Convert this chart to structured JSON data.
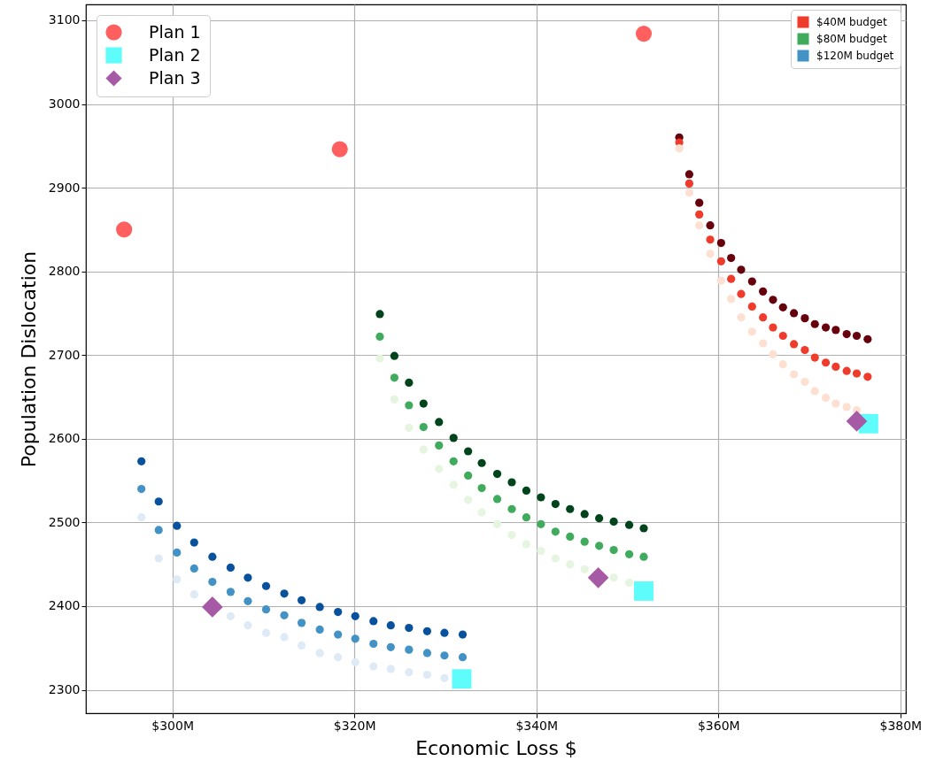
{
  "chart_data": {
    "type": "scatter",
    "xlabel": "Economic Loss $",
    "ylabel": "Population Dislocation",
    "xlim": [
      290.5,
      380.6
    ],
    "ylim": [
      2272,
      3119
    ],
    "xticks": [
      {
        "value": 300,
        "label": "$300M"
      },
      {
        "value": 320,
        "label": "$320M"
      },
      {
        "value": 340,
        "label": "$340M"
      },
      {
        "value": 360,
        "label": "$360M"
      },
      {
        "value": 380,
        "label": "$380M"
      }
    ],
    "yticks": [
      2300,
      2400,
      2500,
      2600,
      2700,
      2800,
      2900,
      3000,
      3100
    ],
    "grid": true,
    "legend": "top",
    "marker": "circle",
    "series": [
      {
        "name": "$40M budget",
        "color": "#ef3b2c",
        "x": [
          355.7,
          355.7,
          355.7,
          356.8,
          356.8,
          356.8,
          357.9,
          357.9,
          357.9,
          359.1,
          359.1,
          359.1,
          360.3,
          360.3,
          360.3,
          361.4,
          361.4,
          361.4,
          362.5,
          362.5,
          362.5,
          363.7,
          363.7,
          363.7,
          364.9,
          364.9,
          364.9,
          366.0,
          366.0,
          366.0,
          367.1,
          367.1,
          367.1,
          368.3,
          368.3,
          368.3,
          369.5,
          369.5,
          369.5,
          370.6,
          370.6,
          370.6,
          371.8,
          371.8,
          371.8,
          372.9,
          372.9,
          372.9,
          374.1,
          374.1,
          374.1,
          375.2,
          375.2,
          375.2,
          376.4,
          376.4
        ],
        "values": [
          2960,
          2954,
          2947,
          2916,
          2905,
          2894,
          2882,
          2868,
          2855,
          2855,
          2838,
          2821,
          2834,
          2812,
          2789,
          2816,
          2791,
          2767,
          2802,
          2773,
          2745,
          2788,
          2758,
          2728,
          2776,
          2745,
          2714,
          2766,
          2733,
          2701,
          2757,
          2723,
          2689,
          2750,
          2713,
          2677,
          2744,
          2706,
          2668,
          2737,
          2697,
          2657,
          2733,
          2691,
          2649,
          2730,
          2686,
          2642,
          2725,
          2681,
          2638,
          2723,
          2678,
          2634,
          2719,
          2674
        ],
        "colors": [
          "#67000d",
          "#ef3b2c",
          "#fee0d2",
          "#67000d",
          "#ef3b2c",
          "#fee0d2",
          "#67000d",
          "#ef3b2c",
          "#fee0d2",
          "#67000d",
          "#ef3b2c",
          "#fee0d2",
          "#67000d",
          "#ef3b2c",
          "#fee0d2",
          "#67000d",
          "#ef3b2c",
          "#fee0d2",
          "#67000d",
          "#ef3b2c",
          "#fee0d2",
          "#67000d",
          "#ef3b2c",
          "#fee0d2",
          "#67000d",
          "#ef3b2c",
          "#fee0d2",
          "#67000d",
          "#ef3b2c",
          "#fee0d2",
          "#67000d",
          "#ef3b2c",
          "#fee0d2",
          "#67000d",
          "#ef3b2c",
          "#fee0d2",
          "#67000d",
          "#ef3b2c",
          "#fee0d2",
          "#67000d",
          "#ef3b2c",
          "#fee0d2",
          "#67000d",
          "#ef3b2c",
          "#fee0d2",
          "#67000d",
          "#ef3b2c",
          "#fee0d2",
          "#67000d",
          "#ef3b2c",
          "#fee0d2",
          "#67000d",
          "#ef3b2c",
          "#fee0d2",
          "#67000d",
          "#ef3b2c"
        ]
      },
      {
        "name": "$80M budget",
        "color": "#41ab5d",
        "x": [
          322.8,
          322.8,
          322.8,
          324.4,
          324.4,
          324.4,
          326.0,
          326.0,
          326.0,
          327.6,
          327.6,
          327.6,
          329.3,
          329.3,
          329.3,
          330.9,
          330.9,
          330.9,
          332.5,
          332.5,
          332.5,
          334.0,
          334.0,
          334.0,
          335.7,
          335.7,
          335.7,
          337.3,
          337.3,
          337.3,
          338.9,
          338.9,
          338.9,
          340.5,
          340.5,
          340.5,
          342.1,
          342.1,
          342.1,
          343.7,
          343.7,
          343.7,
          345.3,
          345.3,
          345.3,
          346.9,
          346.9,
          348.5,
          348.5,
          348.5,
          350.2,
          350.2,
          350.2,
          351.8,
          351.8
        ],
        "values": [
          2749,
          2722,
          2696,
          2699,
          2673,
          2647,
          2667,
          2640,
          2613,
          2642,
          2614,
          2587,
          2620,
          2592,
          2564,
          2601,
          2573,
          2545,
          2585,
          2556,
          2527,
          2571,
          2541,
          2512,
          2558,
          2528,
          2498,
          2548,
          2516,
          2485,
          2538,
          2506,
          2474,
          2530,
          2498,
          2466,
          2522,
          2489,
          2457,
          2516,
          2483,
          2450,
          2510,
          2477,
          2444,
          2505,
          2472,
          2501,
          2467,
          2434,
          2497,
          2462,
          2428,
          2493,
          2459
        ],
        "colors": [
          "#00441b",
          "#41ab5d",
          "#e5f5e0",
          "#00441b",
          "#41ab5d",
          "#e5f5e0",
          "#00441b",
          "#41ab5d",
          "#e5f5e0",
          "#00441b",
          "#41ab5d",
          "#e5f5e0",
          "#00441b",
          "#41ab5d",
          "#e5f5e0",
          "#00441b",
          "#41ab5d",
          "#e5f5e0",
          "#00441b",
          "#41ab5d",
          "#e5f5e0",
          "#00441b",
          "#41ab5d",
          "#e5f5e0",
          "#00441b",
          "#41ab5d",
          "#e5f5e0",
          "#00441b",
          "#41ab5d",
          "#e5f5e0",
          "#00441b",
          "#41ab5d",
          "#e5f5e0",
          "#00441b",
          "#41ab5d",
          "#e5f5e0",
          "#00441b",
          "#41ab5d",
          "#e5f5e0",
          "#00441b",
          "#41ab5d",
          "#e5f5e0",
          "#00441b",
          "#41ab5d",
          "#e5f5e0",
          "#00441b",
          "#41ab5d",
          "#00441b",
          "#41ab5d",
          "#e5f5e0",
          "#00441b",
          "#41ab5d",
          "#e5f5e0",
          "#00441b",
          "#41ab5d"
        ]
      },
      {
        "name": "$120M budget",
        "color": "#4292c6",
        "x": [
          296.6,
          296.6,
          296.6,
          298.5,
          298.5,
          298.5,
          300.5,
          300.5,
          300.5,
          302.4,
          302.4,
          302.4,
          304.4,
          304.4,
          306.4,
          306.4,
          306.4,
          308.3,
          308.3,
          308.3,
          310.3,
          310.3,
          310.3,
          312.3,
          312.3,
          312.3,
          314.2,
          314.2,
          314.2,
          316.2,
          316.2,
          316.2,
          318.2,
          318.2,
          318.2,
          320.1,
          320.1,
          320.1,
          322.1,
          322.1,
          322.1,
          324.0,
          324.0,
          324.0,
          326.0,
          326.0,
          326.0,
          328.0,
          328.0,
          328.0,
          329.9,
          329.9,
          329.9,
          331.9,
          331.9
        ],
        "values": [
          2573,
          2540,
          2506,
          2525,
          2491,
          2457,
          2496,
          2464,
          2432,
          2476,
          2445,
          2414,
          2459,
          2429,
          2446,
          2417,
          2388,
          2434,
          2406,
          2377,
          2424,
          2396,
          2368,
          2415,
          2389,
          2363,
          2407,
          2380,
          2353,
          2399,
          2372,
          2344,
          2393,
          2366,
          2339,
          2388,
          2361,
          2333,
          2382,
          2355,
          2328,
          2377,
          2351,
          2325,
          2374,
          2348,
          2321,
          2370,
          2344,
          2318,
          2368,
          2341,
          2314,
          2366,
          2339
        ],
        "colors": [
          "#08519c",
          "#4292c6",
          "#deebf7",
          "#08519c",
          "#4292c6",
          "#deebf7",
          "#08519c",
          "#4292c6",
          "#deebf7",
          "#08519c",
          "#4292c6",
          "#deebf7",
          "#08519c",
          "#4292c6",
          "#08519c",
          "#4292c6",
          "#deebf7",
          "#08519c",
          "#4292c6",
          "#deebf7",
          "#08519c",
          "#4292c6",
          "#deebf7",
          "#08519c",
          "#4292c6",
          "#deebf7",
          "#08519c",
          "#4292c6",
          "#deebf7",
          "#08519c",
          "#4292c6",
          "#deebf7",
          "#08519c",
          "#4292c6",
          "#deebf7",
          "#08519c",
          "#4292c6",
          "#deebf7",
          "#08519c",
          "#4292c6",
          "#deebf7",
          "#08519c",
          "#4292c6",
          "#deebf7",
          "#08519c",
          "#4292c6",
          "#deebf7",
          "#08519c",
          "#4292c6",
          "#deebf7",
          "#08519c",
          "#4292c6",
          "#deebf7",
          "#08519c",
          "#4292c6"
        ]
      },
      {
        "name": "Plan 1",
        "color": "#ff5f5f",
        "x": [
          294.7,
          318.4,
          351.8
        ],
        "values": [
          2850,
          2946,
          3084
        ]
      },
      {
        "name": "Plan 2",
        "color": "#5ffcfc",
        "marker": "square",
        "x": [
          331.8,
          351.8,
          376.5
        ],
        "values": [
          2313,
          2418,
          2618
        ]
      },
      {
        "name": "Plan 3",
        "color": "#a65aa6",
        "marker": "diamond",
        "x": [
          304.4,
          346.8,
          375.2
        ],
        "values": [
          2399,
          2434,
          2621
        ]
      }
    ]
  }
}
